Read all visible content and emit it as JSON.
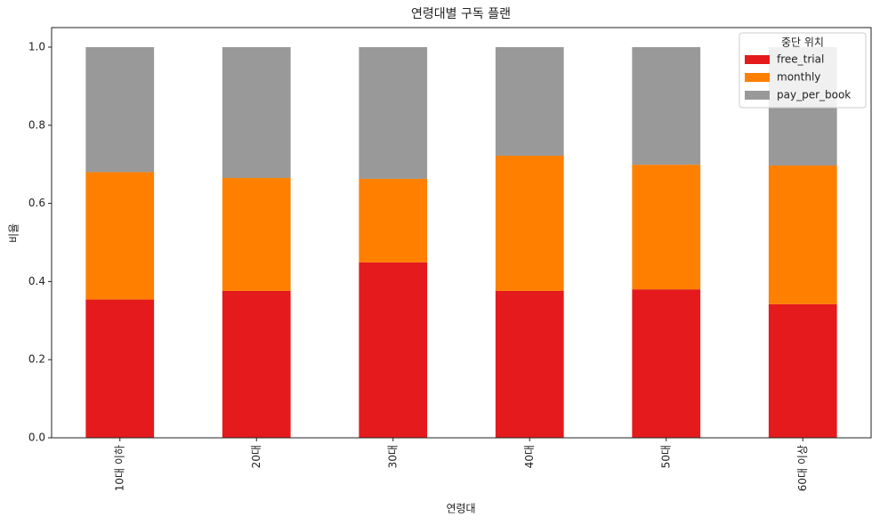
{
  "chart_data": {
    "type": "stacked_bar",
    "title": "연령대별 구독 플랜",
    "x_label": "연령대",
    "y_label": "비율",
    "categories": [
      "10대 이하",
      "20대",
      "30대",
      "40대",
      "50대",
      "60대 이상"
    ],
    "series": [
      {
        "name": "free_trial",
        "color": "#e41a1c",
        "values": [
          0.354,
          0.376,
          0.449,
          0.376,
          0.38,
          0.342
        ]
      },
      {
        "name": "monthly",
        "color": "#ff7f00",
        "values": [
          0.326,
          0.289,
          0.214,
          0.346,
          0.319,
          0.355
        ]
      },
      {
        "name": "pay_per_book",
        "color": "#999999",
        "values": [
          0.32,
          0.335,
          0.337,
          0.278,
          0.301,
          0.303
        ]
      }
    ],
    "legend_title": "중단 위치",
    "legend": "upper right",
    "ylim": [
      0,
      1.05
    ],
    "yticks": [
      {
        "value": 0,
        "label": "0.0"
      },
      {
        "value": 0.2,
        "label": "0.2"
      },
      {
        "value": 0.4,
        "label": "0.4"
      },
      {
        "value": 0.6,
        "label": "0.6"
      },
      {
        "value": 0.8,
        "label": "0.8"
      },
      {
        "value": 1,
        "label": "1.0"
      }
    ],
    "grid": false
  }
}
